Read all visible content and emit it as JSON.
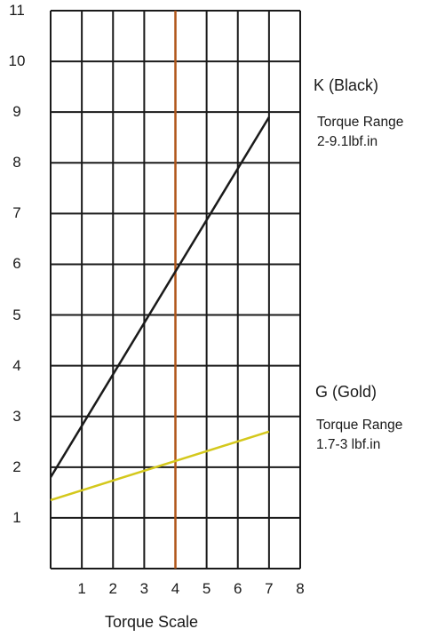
{
  "chart_data": {
    "type": "line",
    "xlabel": "Torque Scale",
    "ylabel": "",
    "x_ticks": [
      1,
      2,
      3,
      4,
      5,
      6,
      7,
      8
    ],
    "y_ticks": [
      1,
      2,
      3,
      4,
      5,
      6,
      7,
      8,
      9,
      10,
      11
    ],
    "xlim": [
      0,
      8
    ],
    "ylim": [
      0,
      11
    ],
    "grid": true,
    "reference_line": {
      "x": 4,
      "color": "#b0561a"
    },
    "series": [
      {
        "name": "K (Black)",
        "color": "#1a1a1a",
        "x": [
          0,
          7
        ],
        "y": [
          1.8,
          8.9
        ]
      },
      {
        "name": "G (Gold)",
        "color": "#d4c81c",
        "x": [
          0,
          7
        ],
        "y": [
          1.35,
          2.7
        ]
      }
    ],
    "annotations": [
      {
        "series": "K (Black)",
        "title": "K (Black)",
        "line1": "Torque Range",
        "line2": "2-9.1lbf.in"
      },
      {
        "series": "G (Gold)",
        "title": "G (Gold)",
        "line1": "Torque Range",
        "line2": "1.7-3 lbf.in"
      }
    ]
  }
}
